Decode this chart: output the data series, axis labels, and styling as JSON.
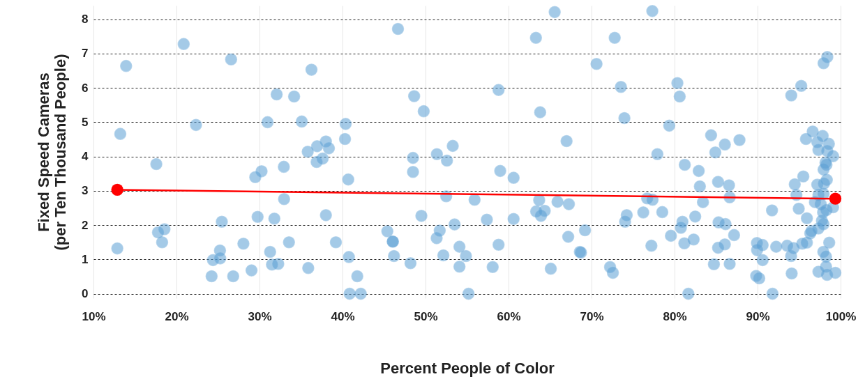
{
  "chart_data": {
    "type": "scatter",
    "xlabel": "Percent People of Color",
    "ylabel": "Fixed Speed Cameras\n(per Ten Thousand People)",
    "xlim": [
      10,
      100
    ],
    "ylim": [
      -0.13,
      8.4
    ],
    "xticks": [
      {
        "value": 10,
        "label": "10%"
      },
      {
        "value": 20,
        "label": "20%"
      },
      {
        "value": 30,
        "label": "30%"
      },
      {
        "value": 40,
        "label": "40%"
      },
      {
        "value": 50,
        "label": "50%"
      },
      {
        "value": 60,
        "label": "60%"
      },
      {
        "value": 70,
        "label": "70%"
      },
      {
        "value": 80,
        "label": "80%"
      },
      {
        "value": 90,
        "label": "90%"
      },
      {
        "value": 100,
        "label": "100%"
      }
    ],
    "yticks": [
      0,
      1,
      2,
      3,
      4,
      5,
      6,
      7,
      8
    ],
    "grid": true,
    "marker": "circle",
    "series": [
      {
        "color": "#5b9fd4",
        "x": [
          20.87,
          13.93,
          13.23,
          22.35,
          17.57,
          18.55,
          17.77,
          18.27,
          12.87,
          26.58,
          36.26,
          32.07,
          34.17,
          30.97,
          35.09,
          38.0,
          36.94,
          38.36,
          35.81,
          36.88,
          37.61,
          32.93,
          30.25,
          29.49,
          32.96,
          25.46,
          29.77,
          31.79,
          38.0,
          28.06,
          33.55,
          25.24,
          31.28,
          24.4,
          25.27,
          24.23,
          26.83,
          29.04,
          31.5,
          32.26,
          35.87,
          46.68,
          48.63,
          49.78,
          40.38,
          40.3,
          48.49,
          48.49,
          40.69,
          51.37,
          52.58,
          53.28,
          52.49,
          49.5,
          53.5,
          51.71,
          51.34,
          45.4,
          46.06,
          46.06,
          39.2,
          40.77,
          46.2,
          52.15,
          48.19,
          41.78,
          40.86,
          42.2,
          65.56,
          63.3,
          58.8,
          63.81,
          66.99,
          59.0,
          60.61,
          55.91,
          63.69,
          65.9,
          67.27,
          63.33,
          64.36,
          63.91,
          57.39,
          60.61,
          67.19,
          68.59,
          54.09,
          58.8,
          54.87,
          54.09,
          58.09,
          65.09,
          55.18,
          77.32,
          72.79,
          70.6,
          73.54,
          80.34,
          80.62,
          73.96,
          79.36,
          77.93,
          81.23,
          82.91,
          83.05,
          83.42,
          76.7,
          77.35,
          76.23,
          78.52,
          82.49,
          74.24,
          74.04,
          80.95,
          80.76,
          79.56,
          82.3,
          81.18,
          77.21,
          69.21,
          68.73,
          72.23,
          72.57,
          81.66,
          98.4,
          97.95,
          95.26,
          94.06,
          84.4,
          87.82,
          86.06,
          84.91,
          96.64,
          95.83,
          97.84,
          97.19,
          98.59,
          97.33,
          98.4,
          99.1,
          98.18,
          98.3,
          97.95,
          95.51,
          94.48,
          98.34,
          98.0,
          97.19,
          85.24,
          86.56,
          86.64,
          94.68,
          97.33,
          97.95,
          96.91,
          97.61,
          99.1,
          94.96,
          97.89,
          98.3,
          91.74,
          95.94,
          97.75,
          97.95,
          97.33,
          96.49,
          96.35,
          95.94,
          95.38,
          94.34,
          93.56,
          94.04,
          92.24,
          90.61,
          89.92,
          89.94,
          90.61,
          98.63,
          97.92,
          98.25,
          98.25,
          97.33,
          98.37,
          99.37,
          94.11,
          89.83,
          90.2,
          91.8,
          85.24,
          86.06,
          87.17,
          85.3,
          86.14,
          84.74,
          86.64
        ],
        "values": [
          7.28,
          6.64,
          4.66,
          4.92,
          3.78,
          1.88,
          1.79,
          1.5,
          1.32,
          6.83,
          6.53,
          5.81,
          5.75,
          5.0,
          5.02,
          4.44,
          4.3,
          4.24,
          4.14,
          3.84,
          3.94,
          3.7,
          3.57,
          3.4,
          2.76,
          2.1,
          2.24,
          2.19,
          2.29,
          1.46,
          1.5,
          1.26,
          1.22,
          0.98,
          1.03,
          0.51,
          0.51,
          0.68,
          0.85,
          0.87,
          0.75,
          7.72,
          5.76,
          5.32,
          4.95,
          4.51,
          3.96,
          3.55,
          3.33,
          4.07,
          3.88,
          4.31,
          2.84,
          2.27,
          2.02,
          1.84,
          1.62,
          1.82,
          1.52,
          1.52,
          1.5,
          1.07,
          1.1,
          1.12,
          0.89,
          0.51,
          0,
          0,
          8.21,
          7.46,
          5.94,
          5.29,
          4.45,
          3.58,
          3.38,
          2.74,
          2.73,
          2.68,
          2.61,
          2.4,
          2.42,
          2.27,
          2.16,
          2.18,
          1.66,
          1.22,
          1.37,
          1.43,
          1.1,
          0.79,
          0.78,
          0.73,
          0,
          8.24,
          7.46,
          6.7,
          6.03,
          6.14,
          5.75,
          5.12,
          4.9,
          4.07,
          3.76,
          3.58,
          3.13,
          2.67,
          2.78,
          2.74,
          2.37,
          2.38,
          2.25,
          2.29,
          2.1,
          2.1,
          1.92,
          1.69,
          1.58,
          1.47,
          1.4,
          1.85,
          1.2,
          0.78,
          0.61,
          0,
          6.9,
          6.72,
          6.06,
          5.78,
          4.62,
          4.48,
          4.35,
          4.12,
          4.73,
          4.51,
          4.6,
          4.42,
          4.37,
          4.19,
          4.16,
          4.01,
          3.82,
          3.76,
          3.62,
          3.42,
          3.19,
          3.32,
          3.21,
          3.18,
          3.26,
          3.16,
          2.81,
          2.88,
          2.88,
          2.91,
          2.67,
          2.61,
          2.52,
          2.48,
          2.37,
          2.44,
          2.43,
          2.2,
          2.13,
          2.03,
          1.9,
          1.83,
          1.76,
          1.49,
          1.46,
          1.33,
          1.4,
          1.1,
          1.37,
          1.42,
          1.48,
          1.27,
          0.98,
          1.49,
          1.22,
          1.08,
          0.79,
          0.64,
          0.55,
          0.61,
          0.59,
          0.52,
          0.45,
          0,
          1.34,
          1.44,
          1.71,
          2.08,
          2.03,
          0.86,
          0.87
        ]
      },
      {
        "type": "line",
        "color": "#ff0000",
        "x": [
          12.87,
          99.37
        ],
        "values": [
          3.03,
          2.77
        ]
      }
    ]
  }
}
